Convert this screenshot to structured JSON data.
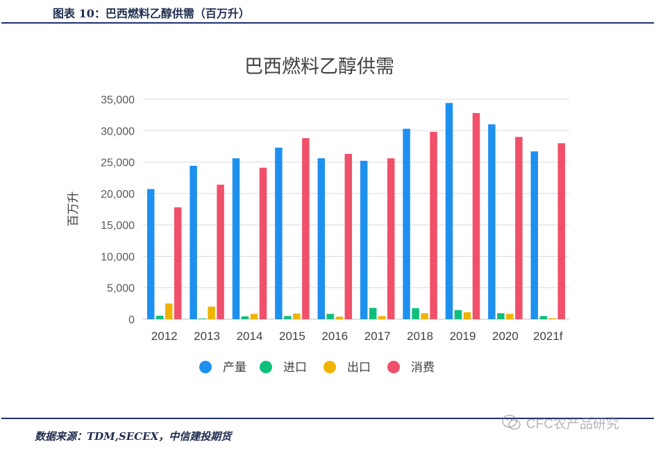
{
  "figure_title": "图表 10：巴西燃料乙醇供需（百万升）",
  "source": "数据来源：TDM,SECEX，中信建投期货",
  "watermark": "CFC农产品研究",
  "chart_data": {
    "type": "bar",
    "title": "巴西燃料乙醇供需",
    "ylabel": "百万升",
    "xlabel": "",
    "ylim": [
      0,
      35000
    ],
    "yticks": [
      0,
      5000,
      10000,
      15000,
      20000,
      25000,
      30000,
      35000
    ],
    "ytick_labels": [
      "0",
      "5,000",
      "10,000",
      "15,000",
      "20,000",
      "25,000",
      "30,000",
      "35,000"
    ],
    "grid": true,
    "legend_position": "bottom",
    "categories": [
      "2012",
      "2013",
      "2014",
      "2015",
      "2016",
      "2017",
      "2018",
      "2019",
      "2020",
      "2021f"
    ],
    "series": [
      {
        "name": "产量",
        "color": "#1e90f0",
        "values": [
          20700,
          24400,
          25600,
          27300,
          25600,
          25200,
          30300,
          34400,
          31000,
          26700
        ]
      },
      {
        "name": "进口",
        "color": "#0fbf7c",
        "values": [
          550,
          100,
          450,
          500,
          850,
          1800,
          1750,
          1450,
          950,
          500
        ]
      },
      {
        "name": "出口",
        "color": "#f0b400",
        "values": [
          2500,
          2000,
          850,
          900,
          400,
          500,
          950,
          1100,
          850,
          150
        ]
      },
      {
        "name": "消费",
        "color": "#f0506a",
        "values": [
          17800,
          21400,
          24100,
          28800,
          26300,
          25600,
          29800,
          32800,
          29000,
          28000
        ]
      }
    ]
  }
}
